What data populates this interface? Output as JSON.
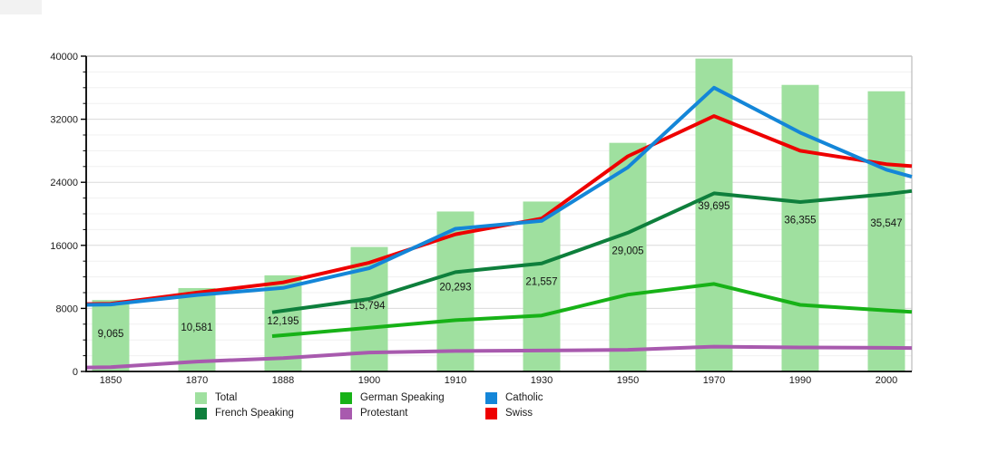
{
  "chart_data": {
    "type": "bar+line",
    "title": "",
    "subtitle": "",
    "categories": [
      "1850",
      "1870",
      "1888",
      "1900",
      "1910",
      "1930",
      "1950",
      "1970",
      "1990",
      "2000"
    ],
    "bars": {
      "name": "Total",
      "color": "#9FE09F",
      "values": [
        9065,
        10581,
        12195,
        15794,
        20293,
        21557,
        29005,
        39695,
        36355,
        35547
      ],
      "labels": [
        "9,065",
        "10,581",
        "12,195",
        "15,794",
        "20,293",
        "21,557",
        "29,005",
        "39,695",
        "36,355",
        "35,547"
      ]
    },
    "series": [
      {
        "name": "Protestant",
        "color": "#A85AAE",
        "values": [
          550,
          1250,
          1700,
          2400,
          2600,
          2650,
          2750,
          3150,
          3050,
          3000
        ],
        "edge_left": 500,
        "edge_right": 2980
      },
      {
        "name": "German Speaking",
        "color": "#17B217",
        "values": [
          null,
          null,
          4600,
          5550,
          6500,
          7100,
          9750,
          11100,
          8450,
          7750
        ],
        "edge_left": null,
        "edge_right": 7550
      },
      {
        "name": "French Speaking",
        "color": "#0E7F3C",
        "values": [
          null,
          null,
          7700,
          9200,
          12600,
          13700,
          17600,
          22600,
          21500,
          22500
        ],
        "edge_left": null,
        "edge_right": 22900
      },
      {
        "name": "Swiss",
        "color": "#EE0000",
        "values": [
          8600,
          10000,
          11300,
          13800,
          17400,
          19400,
          27300,
          32400,
          28000,
          26300
        ],
        "edge_left": 8550,
        "edge_right": 26050
      },
      {
        "name": "Catholic",
        "color": "#1486D8",
        "values": [
          8500,
          9700,
          10600,
          13100,
          18100,
          19100,
          25900,
          36000,
          30300,
          25600
        ],
        "edge_left": 8450,
        "edge_right": 24700
      }
    ],
    "y_axis": {
      "min": 0,
      "max": 40000,
      "major_ticks": [
        "0",
        "8000",
        "16000",
        "24000",
        "32000",
        "40000"
      ],
      "major_step": 8000,
      "minor_step": 2000,
      "grid": "on"
    },
    "x_axis": {
      "tick_labels": [
        "1850",
        "1870",
        "1888",
        "1900",
        "1910",
        "1930",
        "1950",
        "1970",
        "1990",
        "2000"
      ]
    },
    "legend": {
      "position": "bottom",
      "items": [
        {
          "label": "Total",
          "color": "#9FE09F"
        },
        {
          "label": "French Speaking",
          "color": "#0E7F3C"
        },
        {
          "label": "German Speaking",
          "color": "#17B217"
        },
        {
          "label": "Protestant",
          "color": "#A85AAE"
        },
        {
          "label": "Catholic",
          "color": "#1486D8"
        },
        {
          "label": "Swiss",
          "color": "#EE0000"
        }
      ]
    }
  }
}
